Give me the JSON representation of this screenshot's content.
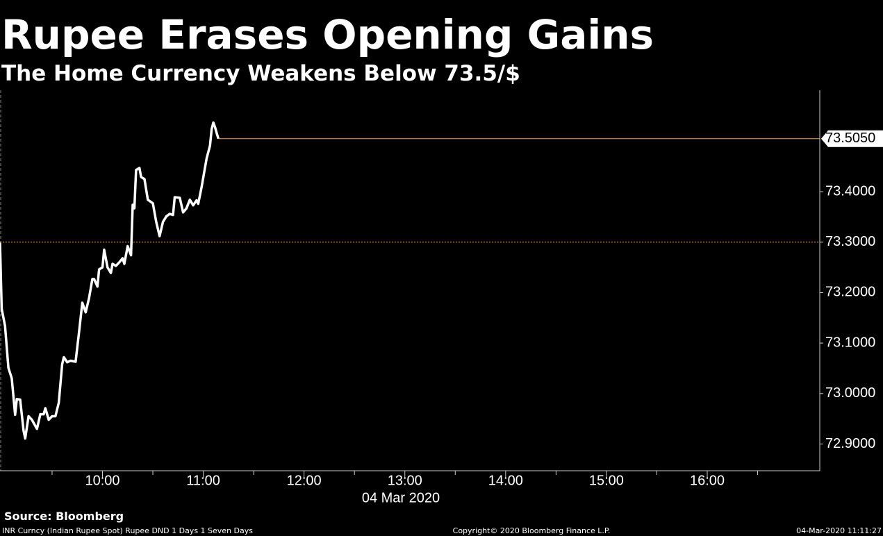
{
  "chart_data": {
    "type": "line",
    "title": "Rupee Erases Opening Gains",
    "subtitle": "The Home Currency Weakens Below 73.5/$",
    "x_label": "04 Mar 2020",
    "x": [
      539,
      540,
      542,
      544,
      546,
      548,
      549,
      551,
      553,
      554,
      556,
      558,
      561,
      563,
      565,
      566,
      568,
      570,
      572,
      574,
      576,
      577,
      579,
      581,
      584,
      586,
      588,
      590,
      592,
      594,
      595,
      597,
      598,
      600,
      601,
      603,
      605,
      606,
      608,
      610,
      612,
      613,
      615,
      617,
      618,
      619,
      620,
      622,
      623,
      625,
      627,
      630,
      632,
      634,
      636,
      638,
      640,
      642,
      643,
      646,
      648,
      650,
      652,
      654,
      656,
      657,
      659,
      662,
      664,
      665,
      666,
      667,
      668,
      669
    ],
    "series": [
      {
        "name": "INR Curncy",
        "color": "#ffffff",
        "values": [
          73.299,
          73.168,
          73.134,
          73.051,
          73.03,
          72.958,
          72.989,
          72.988,
          72.927,
          72.911,
          72.955,
          72.948,
          72.93,
          72.959,
          72.959,
          72.971,
          72.948,
          72.955,
          72.955,
          72.982,
          73.058,
          73.072,
          73.062,
          73.065,
          73.063,
          73.12,
          73.18,
          73.161,
          73.189,
          73.227,
          73.227,
          73.212,
          73.246,
          73.25,
          73.285,
          73.25,
          73.239,
          73.257,
          73.253,
          73.26,
          73.268,
          73.257,
          73.292,
          73.274,
          73.374,
          73.367,
          73.443,
          73.447,
          73.429,
          73.425,
          73.384,
          73.377,
          73.34,
          73.312,
          73.34,
          73.351,
          73.356,
          73.354,
          73.389,
          73.388,
          73.359,
          73.367,
          73.384,
          73.373,
          73.383,
          73.376,
          73.409,
          73.466,
          73.491,
          73.524,
          73.537,
          73.528,
          73.516,
          73.505
        ]
      }
    ],
    "last_value": 73.505,
    "last_label": "73.5050",
    "last_line_color": "#f4a460",
    "reference_line": 73.3,
    "reference_color": "#f4a460",
    "xlim": [
      539,
      1027
    ],
    "xticks": [
      {
        "value": 600,
        "label": "10:00"
      },
      {
        "value": 660,
        "label": "11:00"
      },
      {
        "value": 720,
        "label": "12:00"
      },
      {
        "value": 780,
        "label": "13:00"
      },
      {
        "value": 840,
        "label": "14:00"
      },
      {
        "value": 900,
        "label": "15:00"
      },
      {
        "value": 960,
        "label": "16:00"
      }
    ],
    "ylim": [
      72.847,
      73.601
    ],
    "yticks": [
      {
        "value": 72.9,
        "label": "72.9000"
      },
      {
        "value": 73.0,
        "label": "73.0000"
      },
      {
        "value": 73.1,
        "label": "73.1000"
      },
      {
        "value": 73.2,
        "label": "73.2000"
      },
      {
        "value": 73.3,
        "label": "73.3000"
      },
      {
        "value": 73.4,
        "label": "73.4000"
      }
    ],
    "source": "Source: Bloomberg",
    "footer_left": "INR Curncy (Indian Rupee Spot) Rupee DND 1 Days 1 Seven Days",
    "footer_center": "Copyright© 2020 Bloomberg Finance L.P.",
    "footer_right": "04-Mar-2020 11:11:27"
  }
}
